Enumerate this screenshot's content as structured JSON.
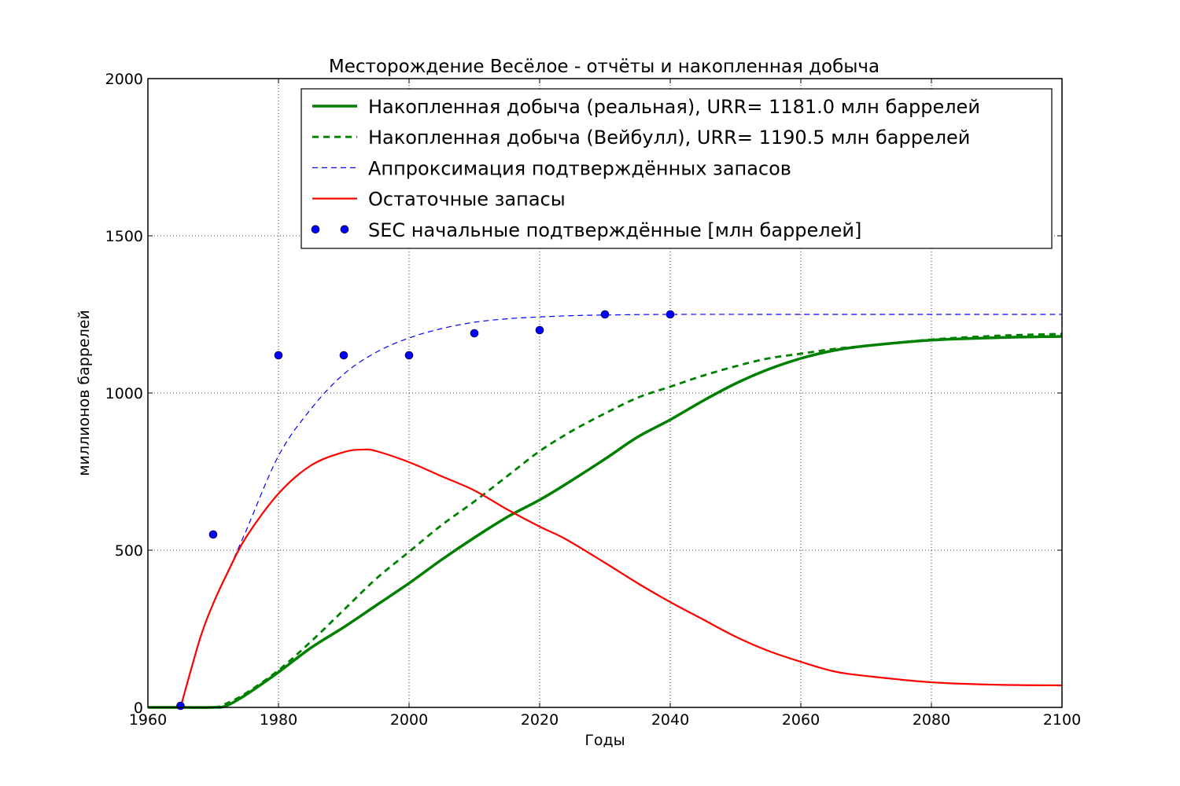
{
  "chart_data": {
    "type": "line",
    "title": "Месторождение Весёлое - отчёты и накопленная добыча",
    "xlabel": "Годы",
    "ylabel": "миллионов баррелей",
    "xlim": [
      1960,
      2100
    ],
    "ylim": [
      0,
      2000
    ],
    "x_ticks": [
      "1960",
      "1980",
      "2000",
      "2020",
      "2040",
      "2060",
      "2080",
      "2100"
    ],
    "y_ticks": [
      "0",
      "500",
      "1000",
      "1500",
      "2000"
    ],
    "grid": true,
    "legend_position": "top-right",
    "series": [
      {
        "name": "Накопленная добыча (реальная), URR= 1181.0 млн баррелей",
        "style": "solid-thick",
        "color": "#008000",
        "x": [
          1960,
          1965,
          1970,
          1972,
          1975,
          1980,
          1985,
          1990,
          1995,
          2000,
          2005,
          2010,
          2015,
          2020,
          2024,
          2030,
          2035,
          2040,
          2045,
          2050,
          2055,
          2060,
          2065,
          2070,
          2080,
          2090,
          2100
        ],
        "y": [
          0,
          0,
          0,
          5,
          40,
          112,
          190,
          255,
          325,
          395,
          470,
          540,
          605,
          660,
          710,
          790,
          860,
          915,
          975,
          1030,
          1075,
          1110,
          1135,
          1150,
          1168,
          1176,
          1180
        ]
      },
      {
        "name": "Накопленная добыча (Вейбулл), URR= 1190.5 млн баррелей",
        "style": "dashed-thick",
        "color": "#008000",
        "x": [
          1960,
          1965,
          1970,
          1972,
          1975,
          1980,
          1985,
          1990,
          1995,
          2000,
          2005,
          2010,
          2015,
          2020,
          2025,
          2030,
          2035,
          2040,
          2045,
          2050,
          2055,
          2060,
          2065,
          2070,
          2080,
          2090,
          2100
        ],
        "y": [
          0,
          0,
          0,
          12,
          45,
          118,
          210,
          310,
          410,
          495,
          580,
          655,
          735,
          815,
          880,
          935,
          985,
          1020,
          1055,
          1085,
          1110,
          1125,
          1140,
          1150,
          1170,
          1182,
          1188
        ]
      },
      {
        "name": "Аппроксимация подтверждённых запасов",
        "style": "dashed-thin",
        "color": "#0000ff",
        "x": [
          1972,
          1975,
          1980,
          1985,
          1990,
          1995,
          2000,
          2005,
          2010,
          2015,
          2020,
          2025,
          2030,
          2040,
          2060,
          2080,
          2100
        ],
        "y": [
          420,
          560,
          800,
          950,
          1060,
          1130,
          1175,
          1205,
          1225,
          1236,
          1242,
          1246,
          1248,
          1250,
          1250,
          1250,
          1250
        ]
      },
      {
        "name": "Остаточные запасы",
        "style": "solid",
        "color": "#ff0000",
        "x": [
          1965,
          1968,
          1970,
          1972,
          1975,
          1980,
          1985,
          1990,
          1993,
          1995,
          2000,
          2005,
          2010,
          2015,
          2020,
          2024,
          2030,
          2035,
          2040,
          2045,
          2050,
          2055,
          2060,
          2065,
          2070,
          2080,
          2090,
          2100
        ],
        "y": [
          0,
          220,
          330,
          420,
          540,
          680,
          770,
          812,
          820,
          815,
          780,
          735,
          690,
          630,
          575,
          535,
          460,
          395,
          335,
          280,
          225,
          180,
          145,
          115,
          100,
          80,
          72,
          70
        ]
      },
      {
        "name": "SEC начальные подтверждённые [млн баррелей]",
        "style": "markers",
        "color": "#0000ff",
        "x": [
          1965,
          1970,
          1980,
          1990,
          2000,
          2010,
          2020,
          2030,
          2040
        ],
        "y": [
          5,
          550,
          1120,
          1120,
          1120,
          1190,
          1200,
          1250,
          1250
        ]
      }
    ]
  }
}
